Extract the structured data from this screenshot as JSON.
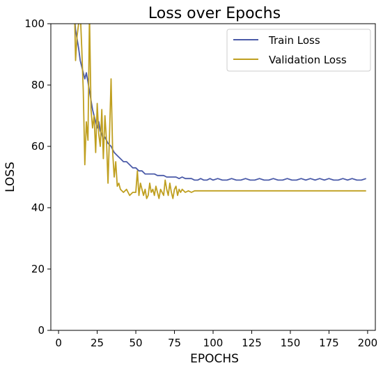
{
  "chart_data": {
    "type": "line",
    "title": "Loss over Epochs",
    "xlabel": "EPOCHS",
    "ylabel": "LOSS",
    "xlim": [
      -5,
      205
    ],
    "ylim": [
      0,
      100
    ],
    "xticks": [
      0,
      25,
      50,
      75,
      100,
      125,
      150,
      175,
      200
    ],
    "yticks": [
      0,
      20,
      40,
      60,
      80,
      100
    ],
    "grid": false,
    "legend_position": "top-right",
    "series": [
      {
        "name": "Train Loss",
        "color": "#4a5aa8",
        "x": [
          10,
          11,
          12,
          13,
          14,
          15,
          16,
          17,
          18,
          19,
          20,
          21,
          22,
          23,
          24,
          25,
          26,
          27,
          28,
          29,
          30,
          32,
          34,
          36,
          38,
          40,
          42,
          44,
          46,
          48,
          50,
          52,
          54,
          56,
          58,
          60,
          62,
          64,
          66,
          68,
          70,
          72,
          74,
          76,
          78,
          80,
          82,
          84,
          86,
          88,
          90,
          92,
          94,
          96,
          98,
          100,
          103,
          106,
          109,
          112,
          115,
          118,
          121,
          124,
          127,
          130,
          133,
          136,
          139,
          142,
          145,
          148,
          151,
          154,
          157,
          160,
          163,
          166,
          169,
          172,
          175,
          178,
          181,
          184,
          187,
          190,
          193,
          196,
          199
        ],
        "y": [
          104,
          98,
          95,
          92,
          88,
          86,
          84,
          82,
          84,
          81,
          78,
          75,
          72,
          70,
          68,
          66,
          68,
          65,
          64,
          62,
          63,
          61,
          60,
          58,
          57,
          56,
          55,
          55,
          54,
          53,
          53,
          52,
          52,
          51,
          51,
          51,
          51,
          50.5,
          50.5,
          50.5,
          50,
          50,
          50,
          50,
          49.5,
          50,
          49.5,
          49.5,
          49.5,
          49,
          49,
          49.5,
          49,
          49,
          49.5,
          49,
          49.5,
          49,
          49,
          49.5,
          49,
          49,
          49.5,
          49,
          49,
          49.5,
          49,
          49,
          49.5,
          49,
          49,
          49.5,
          49,
          49,
          49.5,
          49,
          49.5,
          49,
          49.5,
          49,
          49.5,
          49,
          49,
          49.5,
          49,
          49.5,
          49,
          49,
          49.5
        ]
      },
      {
        "name": "Validation Loss",
        "color": "#bf9f1f",
        "x": [
          10,
          11,
          12,
          13,
          14,
          15,
          16,
          17,
          18,
          19,
          20,
          21,
          22,
          23,
          24,
          25,
          26,
          27,
          28,
          29,
          30,
          31,
          32,
          33,
          34,
          35,
          36,
          37,
          38,
          39,
          40,
          42,
          44,
          46,
          48,
          50,
          51,
          52,
          53,
          54,
          55,
          56,
          57,
          58,
          59,
          60,
          61,
          62,
          63,
          64,
          65,
          66,
          67,
          68,
          69,
          70,
          71,
          72,
          73,
          74,
          75,
          76,
          77,
          78,
          79,
          80,
          82,
          84,
          86,
          88,
          90,
          95,
          100,
          105,
          110,
          115,
          120,
          130,
          140,
          150,
          160,
          170,
          180,
          190,
          199
        ],
        "y": [
          112,
          88,
          96,
          100,
          104,
          92,
          78,
          54,
          68,
          62,
          103,
          72,
          66,
          70,
          58,
          74,
          64,
          60,
          72,
          56,
          70,
          62,
          48,
          64,
          82,
          58,
          50,
          55,
          47,
          48,
          46,
          45,
          46,
          44,
          45,
          45,
          52,
          44,
          48,
          46,
          44,
          46,
          43,
          44,
          48,
          45,
          46,
          44,
          47,
          45,
          43,
          46,
          45,
          44,
          49,
          46,
          44,
          48,
          45,
          43,
          46,
          47,
          44,
          46,
          45,
          46,
          45,
          45.5,
          45,
          45.5,
          45.5,
          45.5,
          45.5,
          45.5,
          45.5,
          45.5,
          45.5,
          45.5,
          45.5,
          45.5,
          45.5,
          45.5,
          45.5,
          45.5,
          45.5
        ]
      }
    ]
  }
}
